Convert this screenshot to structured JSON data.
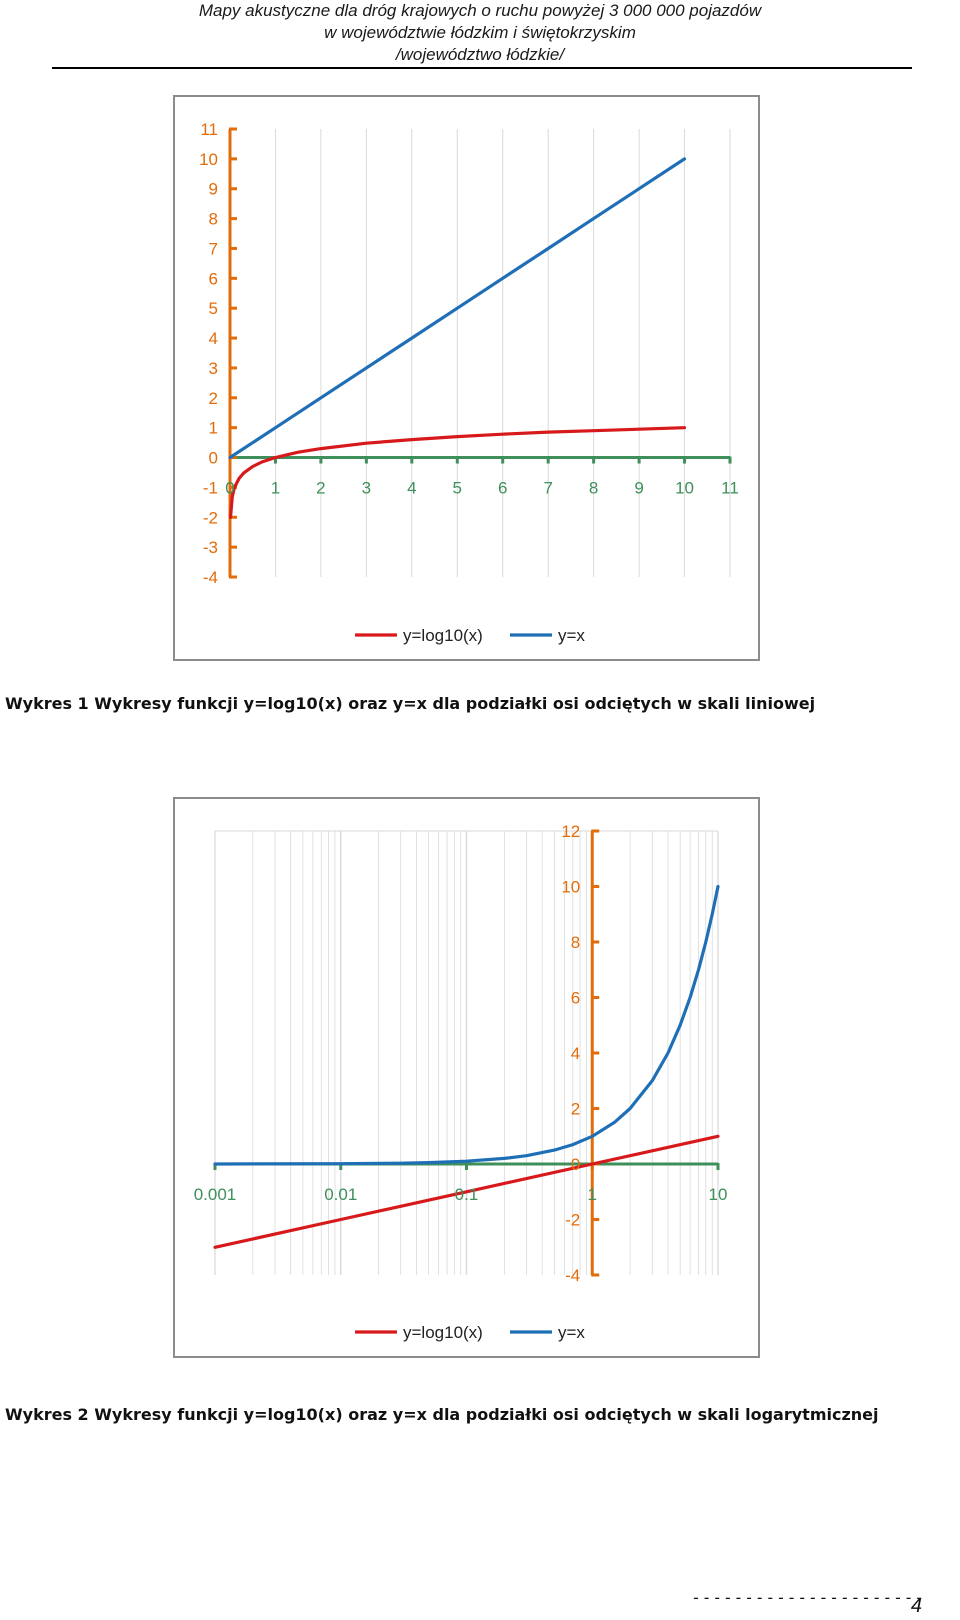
{
  "header": {
    "line1": "Mapy akustyczne dla dróg krajowych o ruchu powyżej 3 000 000 pojazdów",
    "line2": "w województwie łódzkim i świętokrzyskim",
    "line3": "/województwo łódzkie/"
  },
  "colors": {
    "log_series": "#d7191c",
    "linear_series": "#1f6fb7",
    "y_axis": "#e36c0a",
    "x_axis": "#3e8f5a",
    "grid": "#d9d9d9"
  },
  "chart_data": [
    {
      "type": "line",
      "x_scale": "linear",
      "xlim": [
        0,
        11
      ],
      "ylim": [
        -4,
        11
      ],
      "x_ticks": [
        0,
        1,
        2,
        3,
        4,
        5,
        6,
        7,
        8,
        9,
        10,
        11
      ],
      "y_ticks": [
        -4,
        -3,
        -2,
        -1,
        0,
        1,
        2,
        3,
        4,
        5,
        6,
        7,
        8,
        9,
        10,
        11
      ],
      "legend_position": "bottom",
      "series": [
        {
          "name": "y=log10(x)",
          "color": "#d7191c",
          "x": [
            0.01,
            0.05,
            0.1,
            0.2,
            0.3,
            0.5,
            0.7,
            1,
            1.5,
            2,
            3,
            4,
            5,
            6,
            7,
            8,
            9,
            10
          ],
          "y": [
            -2,
            -1.3,
            -1,
            -0.7,
            -0.52,
            -0.3,
            -0.15,
            0,
            0.18,
            0.3,
            0.48,
            0.6,
            0.7,
            0.78,
            0.85,
            0.9,
            0.95,
            1
          ]
        },
        {
          "name": "y=x",
          "color": "#1f6fb7",
          "x": [
            0,
            1,
            2,
            3,
            4,
            5,
            6,
            7,
            8,
            9,
            10
          ],
          "y": [
            0,
            1,
            2,
            3,
            4,
            5,
            6,
            7,
            8,
            9,
            10
          ]
        }
      ]
    },
    {
      "type": "line",
      "x_scale": "log",
      "xlim": [
        0.001,
        10
      ],
      "ylim": [
        -4,
        12
      ],
      "x_ticks": [
        0.001,
        0.01,
        0.1,
        1,
        10
      ],
      "x_tick_labels": [
        "0.001",
        "0.01",
        "0.1",
        "1",
        "10"
      ],
      "y_ticks": [
        -4,
        -2,
        0,
        2,
        4,
        6,
        8,
        10,
        12
      ],
      "legend_position": "bottom",
      "series": [
        {
          "name": "y=log10(x)",
          "color": "#d7191c",
          "x": [
            0.001,
            0.01,
            0.1,
            1,
            10
          ],
          "y": [
            -3,
            -2,
            -1,
            0,
            1
          ]
        },
        {
          "name": "y=x",
          "color": "#1f6fb7",
          "x": [
            0.001,
            0.01,
            0.03,
            0.05,
            0.1,
            0.2,
            0.3,
            0.5,
            0.7,
            1,
            1.5,
            2,
            3,
            4,
            5,
            6,
            7,
            8,
            9,
            10
          ],
          "y": [
            0.001,
            0.01,
            0.03,
            0.05,
            0.1,
            0.2,
            0.3,
            0.5,
            0.7,
            1,
            1.5,
            2,
            3,
            4,
            5,
            6,
            7,
            8,
            9,
            10
          ]
        }
      ]
    }
  ],
  "captions": {
    "chart1": "Wykres 1 Wykresy funkcji y=log10(x) oraz y=x dla podziałki osi odciętych w skali liniowej",
    "chart2": "Wykres 2 Wykresy funkcji y=log10(x) oraz y=x dla podziałki osi odciętych w skali logarytmicznej"
  },
  "footer": {
    "dashes": "----------------------",
    "page_number": "4"
  }
}
